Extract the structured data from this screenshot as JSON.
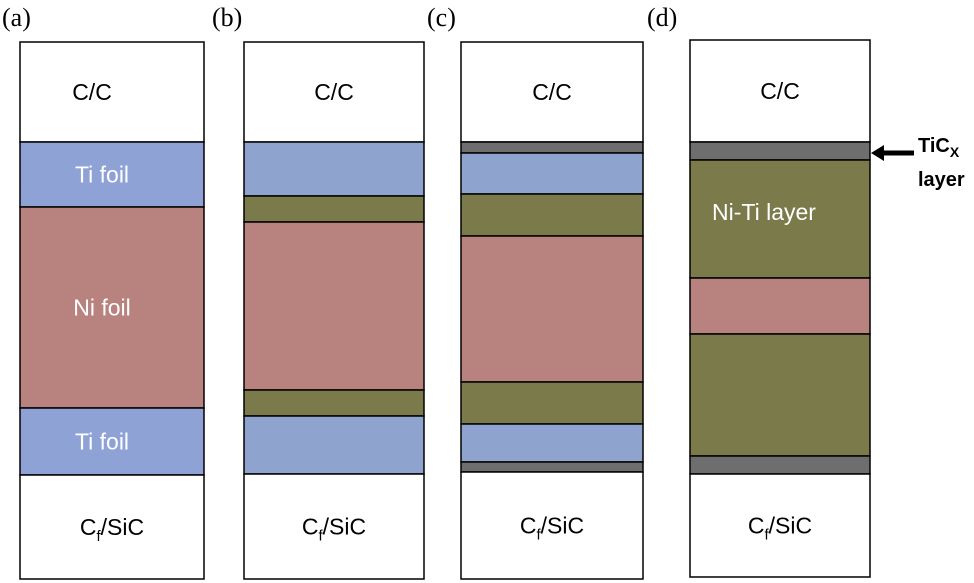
{
  "colors": {
    "cc": "#ffffff",
    "ti": "#8fa3cf",
    "ti_foil": "#8ea2d6",
    "ni": "#b8837f",
    "niti": "#7a7a4a",
    "tic": "#6e6e6e",
    "sic": "#ffffff",
    "white_text": "#ffffff",
    "dark_text": "#000000"
  },
  "panels": [
    {
      "label": "(a)",
      "layers": [
        {
          "kind": "cc",
          "h": 100,
          "text": "C/C"
        },
        {
          "kind": "ti_foil",
          "h": 65,
          "text": "Ti foil"
        },
        {
          "kind": "ni",
          "h": 201,
          "text": "Ni foil"
        },
        {
          "kind": "ti_foil",
          "h": 67,
          "text": "Ti foil"
        },
        {
          "kind": "sic",
          "h": 104,
          "text": "Cf/SiC"
        }
      ]
    },
    {
      "label": "(b)",
      "layers": [
        {
          "kind": "cc",
          "h": 100,
          "text": "C/C"
        },
        {
          "kind": "ti",
          "h": 54,
          "text": ""
        },
        {
          "kind": "niti",
          "h": 26,
          "text": ""
        },
        {
          "kind": "ni",
          "h": 168,
          "text": ""
        },
        {
          "kind": "niti",
          "h": 26,
          "text": ""
        },
        {
          "kind": "ti",
          "h": 58,
          "text": ""
        },
        {
          "kind": "sic",
          "h": 105,
          "text": "Cf/SiC"
        }
      ]
    },
    {
      "label": "(c)",
      "layers": [
        {
          "kind": "cc",
          "h": 100,
          "text": "C/C"
        },
        {
          "kind": "tic",
          "h": 11,
          "text": ""
        },
        {
          "kind": "ti",
          "h": 41,
          "text": ""
        },
        {
          "kind": "niti",
          "h": 42,
          "text": ""
        },
        {
          "kind": "ni",
          "h": 146,
          "text": ""
        },
        {
          "kind": "niti",
          "h": 42,
          "text": ""
        },
        {
          "kind": "ti",
          "h": 38,
          "text": ""
        },
        {
          "kind": "tic",
          "h": 10,
          "text": ""
        },
        {
          "kind": "sic",
          "h": 107,
          "text": "Cf/SiC"
        }
      ]
    },
    {
      "label": "(d)",
      "layers": [
        {
          "kind": "cc",
          "h": 102,
          "text": "C/C"
        },
        {
          "kind": "tic",
          "h": 18,
          "text": ""
        },
        {
          "kind": "niti",
          "h": 118,
          "text": "Ni-Ti layer"
        },
        {
          "kind": "ni",
          "h": 56,
          "text": ""
        },
        {
          "kind": "niti",
          "h": 122,
          "text": ""
        },
        {
          "kind": "tic",
          "h": 18,
          "text": ""
        },
        {
          "kind": "sic",
          "h": 103,
          "text": "Cf/SiC"
        }
      ]
    }
  ],
  "annotation": {
    "line1_main": "TiC",
    "line1_sub": "X",
    "line2": "layer"
  }
}
